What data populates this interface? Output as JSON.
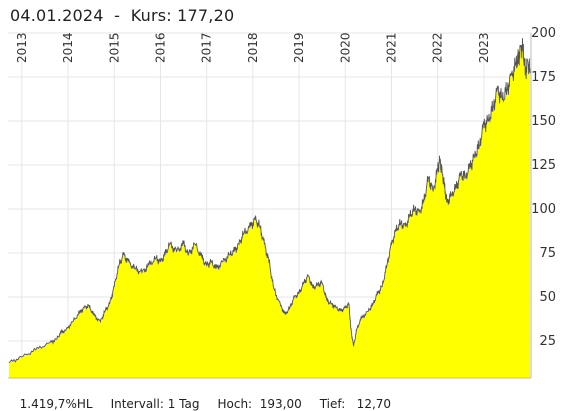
{
  "header": {
    "title": "04.01.2024  -  Kurs: 177,20"
  },
  "footer": {
    "hl": "1.419,7%HL",
    "interval": "Intervall: 1 Tag",
    "high": "Hoch:  193,00",
    "low": "Tief:   12,70"
  },
  "chart_data": {
    "type": "area",
    "title": "",
    "xlabel": "",
    "ylabel": "",
    "xlim": [
      2012.7,
      2024.02
    ],
    "ylim": [
      4,
      200
    ],
    "y_ticks": [
      25,
      50,
      75,
      100,
      125,
      150,
      175,
      200
    ],
    "x_ticks": [
      "2013",
      "2014",
      "2015",
      "2016",
      "2017",
      "2018",
      "2019",
      "2020",
      "2021",
      "2022",
      "2023"
    ],
    "grid": true,
    "fill_color": "#ffff00",
    "line_color": "#555555",
    "series": [
      {
        "x": [
          2012.72,
          2013.0,
          2013.3,
          2013.6,
          2013.75,
          2013.85,
          2013.95,
          2014.1,
          2014.25,
          2014.35,
          2014.45,
          2014.55,
          2014.7,
          2014.8,
          2014.9,
          2015.0,
          2015.1,
          2015.2,
          2015.3,
          2015.45,
          2015.6,
          2015.75,
          2015.9,
          2016.0,
          2016.1,
          2016.2,
          2016.35,
          2016.5,
          2016.6,
          2016.75,
          2016.9,
          2017.0,
          2017.1,
          2017.2,
          2017.35,
          2017.5,
          2017.6,
          2017.7,
          2017.8,
          2017.95,
          2018.05,
          2018.15,
          2018.25,
          2018.35,
          2018.45,
          2018.6,
          2018.7,
          2018.8,
          2018.9,
          2019.0,
          2019.1,
          2019.2,
          2019.3,
          2019.4,
          2019.5,
          2019.6,
          2019.7,
          2019.8,
          2019.9,
          2020.0,
          2020.08,
          2020.12,
          2020.18,
          2020.25,
          2020.35,
          2020.5,
          2020.6,
          2020.7,
          2020.8,
          2020.9,
          2021.0,
          2021.1,
          2021.2,
          2021.3,
          2021.4,
          2021.5,
          2021.6,
          2021.7,
          2021.8,
          2021.9,
          2022.0,
          2022.05,
          2022.1,
          2022.15,
          2022.2,
          2022.3,
          2022.4,
          2022.5,
          2022.6,
          2022.7,
          2022.8,
          2022.9,
          2023.0,
          2023.1,
          2023.2,
          2023.3,
          2023.4,
          2023.5,
          2023.6,
          2023.7,
          2023.75,
          2023.8,
          2023.85,
          2023.9,
          2023.95,
          2024.0
        ],
        "y": [
          12.7,
          16,
          20,
          24,
          26,
          30,
          31,
          36,
          41,
          44,
          45,
          40,
          36,
          42,
          46,
          56,
          68,
          74,
          70,
          66,
          64,
          68,
          72,
          70,
          74,
          80,
          76,
          80,
          74,
          80,
          72,
          68,
          70,
          66,
          70,
          74,
          76,
          80,
          86,
          90,
          94,
          90,
          80,
          70,
          55,
          45,
          40,
          44,
          50,
          52,
          58,
          62,
          55,
          57,
          58,
          48,
          46,
          44,
          42,
          44,
          46,
          32,
          22,
          32,
          38,
          42,
          46,
          52,
          56,
          68,
          80,
          88,
          92,
          90,
          96,
          100,
          98,
          104,
          118,
          110,
          122,
          128,
          120,
          112,
          104,
          108,
          112,
          120,
          118,
          124,
          130,
          136,
          148,
          150,
          158,
          168,
          162,
          168,
          176,
          182,
          186,
          192,
          190,
          178,
          184,
          177.2
        ]
      }
    ]
  }
}
